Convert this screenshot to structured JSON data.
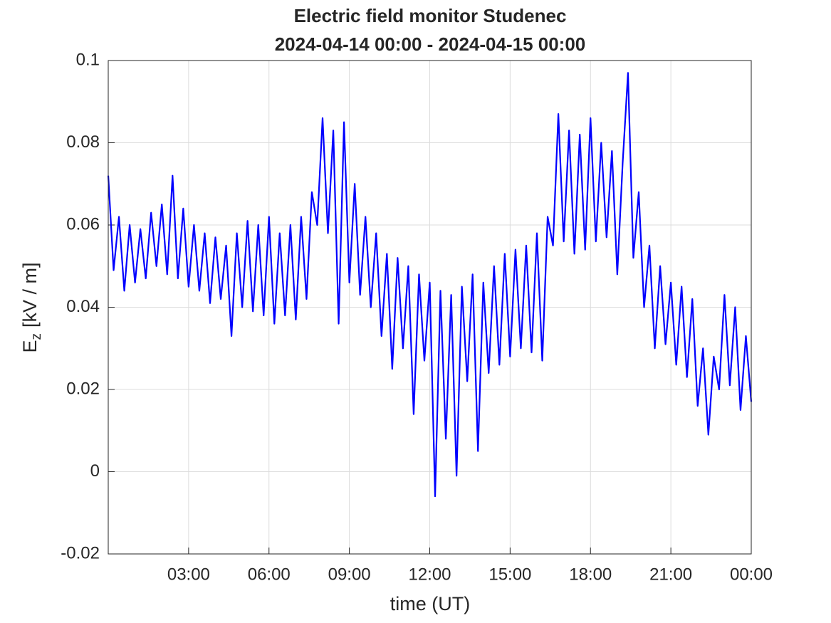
{
  "chart_data": {
    "type": "line",
    "title": "Electric field monitor Studenec",
    "subtitle": "2024-04-14 00:00 - 2024-04-15 00:00",
    "xlabel": "time (UT)",
    "ylabel": "E",
    "ylabel_subscript": "z",
    "ylabel_unit": "[kV / m]",
    "xlim": [
      0,
      24
    ],
    "xticks": [
      {
        "value": 3,
        "label": "03:00"
      },
      {
        "value": 6,
        "label": "06:00"
      },
      {
        "value": 9,
        "label": "09:00"
      },
      {
        "value": 12,
        "label": "12:00"
      },
      {
        "value": 15,
        "label": "15:00"
      },
      {
        "value": 18,
        "label": "18:00"
      },
      {
        "value": 21,
        "label": "21:00"
      },
      {
        "value": 24,
        "label": "00:00"
      }
    ],
    "ylim": [
      -0.02,
      0.1
    ],
    "yticks": [
      -0.02,
      0,
      0.02,
      0.04,
      0.06,
      0.08,
      0.1
    ],
    "grid": true,
    "x": [
      0,
      0.2,
      0.4,
      0.6,
      0.8,
      1,
      1.2,
      1.4,
      1.6,
      1.8,
      2,
      2.2,
      2.4,
      2.6,
      2.8,
      3,
      3.2,
      3.4,
      3.6,
      3.8,
      4,
      4.2,
      4.4,
      4.6,
      4.8,
      5,
      5.2,
      5.4,
      5.6,
      5.8,
      6,
      6.2,
      6.4,
      6.6,
      6.8,
      7,
      7.2,
      7.4,
      7.6,
      7.8,
      8,
      8.2,
      8.4,
      8.6,
      8.8,
      9,
      9.2,
      9.4,
      9.6,
      9.8,
      10,
      10.2,
      10.4,
      10.6,
      10.8,
      11,
      11.2,
      11.4,
      11.6,
      11.8,
      12,
      12.2,
      12.4,
      12.6,
      12.8,
      13,
      13.2,
      13.4,
      13.6,
      13.8,
      14,
      14.2,
      14.4,
      14.6,
      14.8,
      15,
      15.2,
      15.4,
      15.6,
      15.8,
      16,
      16.2,
      16.4,
      16.6,
      16.8,
      17,
      17.2,
      17.4,
      17.6,
      17.8,
      18,
      18.2,
      18.4,
      18.6,
      18.8,
      19,
      19.2,
      19.4,
      19.6,
      19.8,
      20,
      20.2,
      20.4,
      20.6,
      20.8,
      21,
      21.2,
      21.4,
      21.6,
      21.8,
      22,
      22.2,
      22.4,
      22.6,
      22.8,
      23,
      23.2,
      23.4,
      23.6,
      23.8,
      24
    ],
    "series": [
      {
        "color": "#0000ff",
        "values": [
          0.072,
          0.049,
          0.062,
          0.044,
          0.06,
          0.046,
          0.059,
          0.047,
          0.063,
          0.05,
          0.065,
          0.048,
          0.072,
          0.047,
          0.064,
          0.045,
          0.06,
          0.044,
          0.058,
          0.041,
          0.057,
          0.042,
          0.055,
          0.033,
          0.058,
          0.04,
          0.061,
          0.039,
          0.06,
          0.038,
          0.062,
          0.036,
          0.058,
          0.038,
          0.06,
          0.037,
          0.062,
          0.042,
          0.068,
          0.06,
          0.086,
          0.058,
          0.083,
          0.036,
          0.085,
          0.046,
          0.07,
          0.043,
          0.062,
          0.04,
          0.058,
          0.033,
          0.053,
          0.025,
          0.052,
          0.03,
          0.05,
          0.014,
          0.048,
          0.027,
          0.046,
          -0.006,
          0.044,
          0.008,
          0.043,
          -0.001,
          0.045,
          0.022,
          0.048,
          0.005,
          0.046,
          0.024,
          0.05,
          0.026,
          0.053,
          0.028,
          0.054,
          0.03,
          0.055,
          0.029,
          0.058,
          0.027,
          0.062,
          0.055,
          0.087,
          0.056,
          0.083,
          0.053,
          0.082,
          0.054,
          0.086,
          0.056,
          0.08,
          0.057,
          0.078,
          0.048,
          0.075,
          0.097,
          0.052,
          0.068,
          0.04,
          0.055,
          0.03,
          0.05,
          0.031,
          0.046,
          0.026,
          0.045,
          0.023,
          0.042,
          0.016,
          0.03,
          0.009,
          0.028,
          0.02,
          0.043,
          0.021,
          0.04,
          0.015,
          0.033,
          0.017
        ]
      }
    ]
  }
}
